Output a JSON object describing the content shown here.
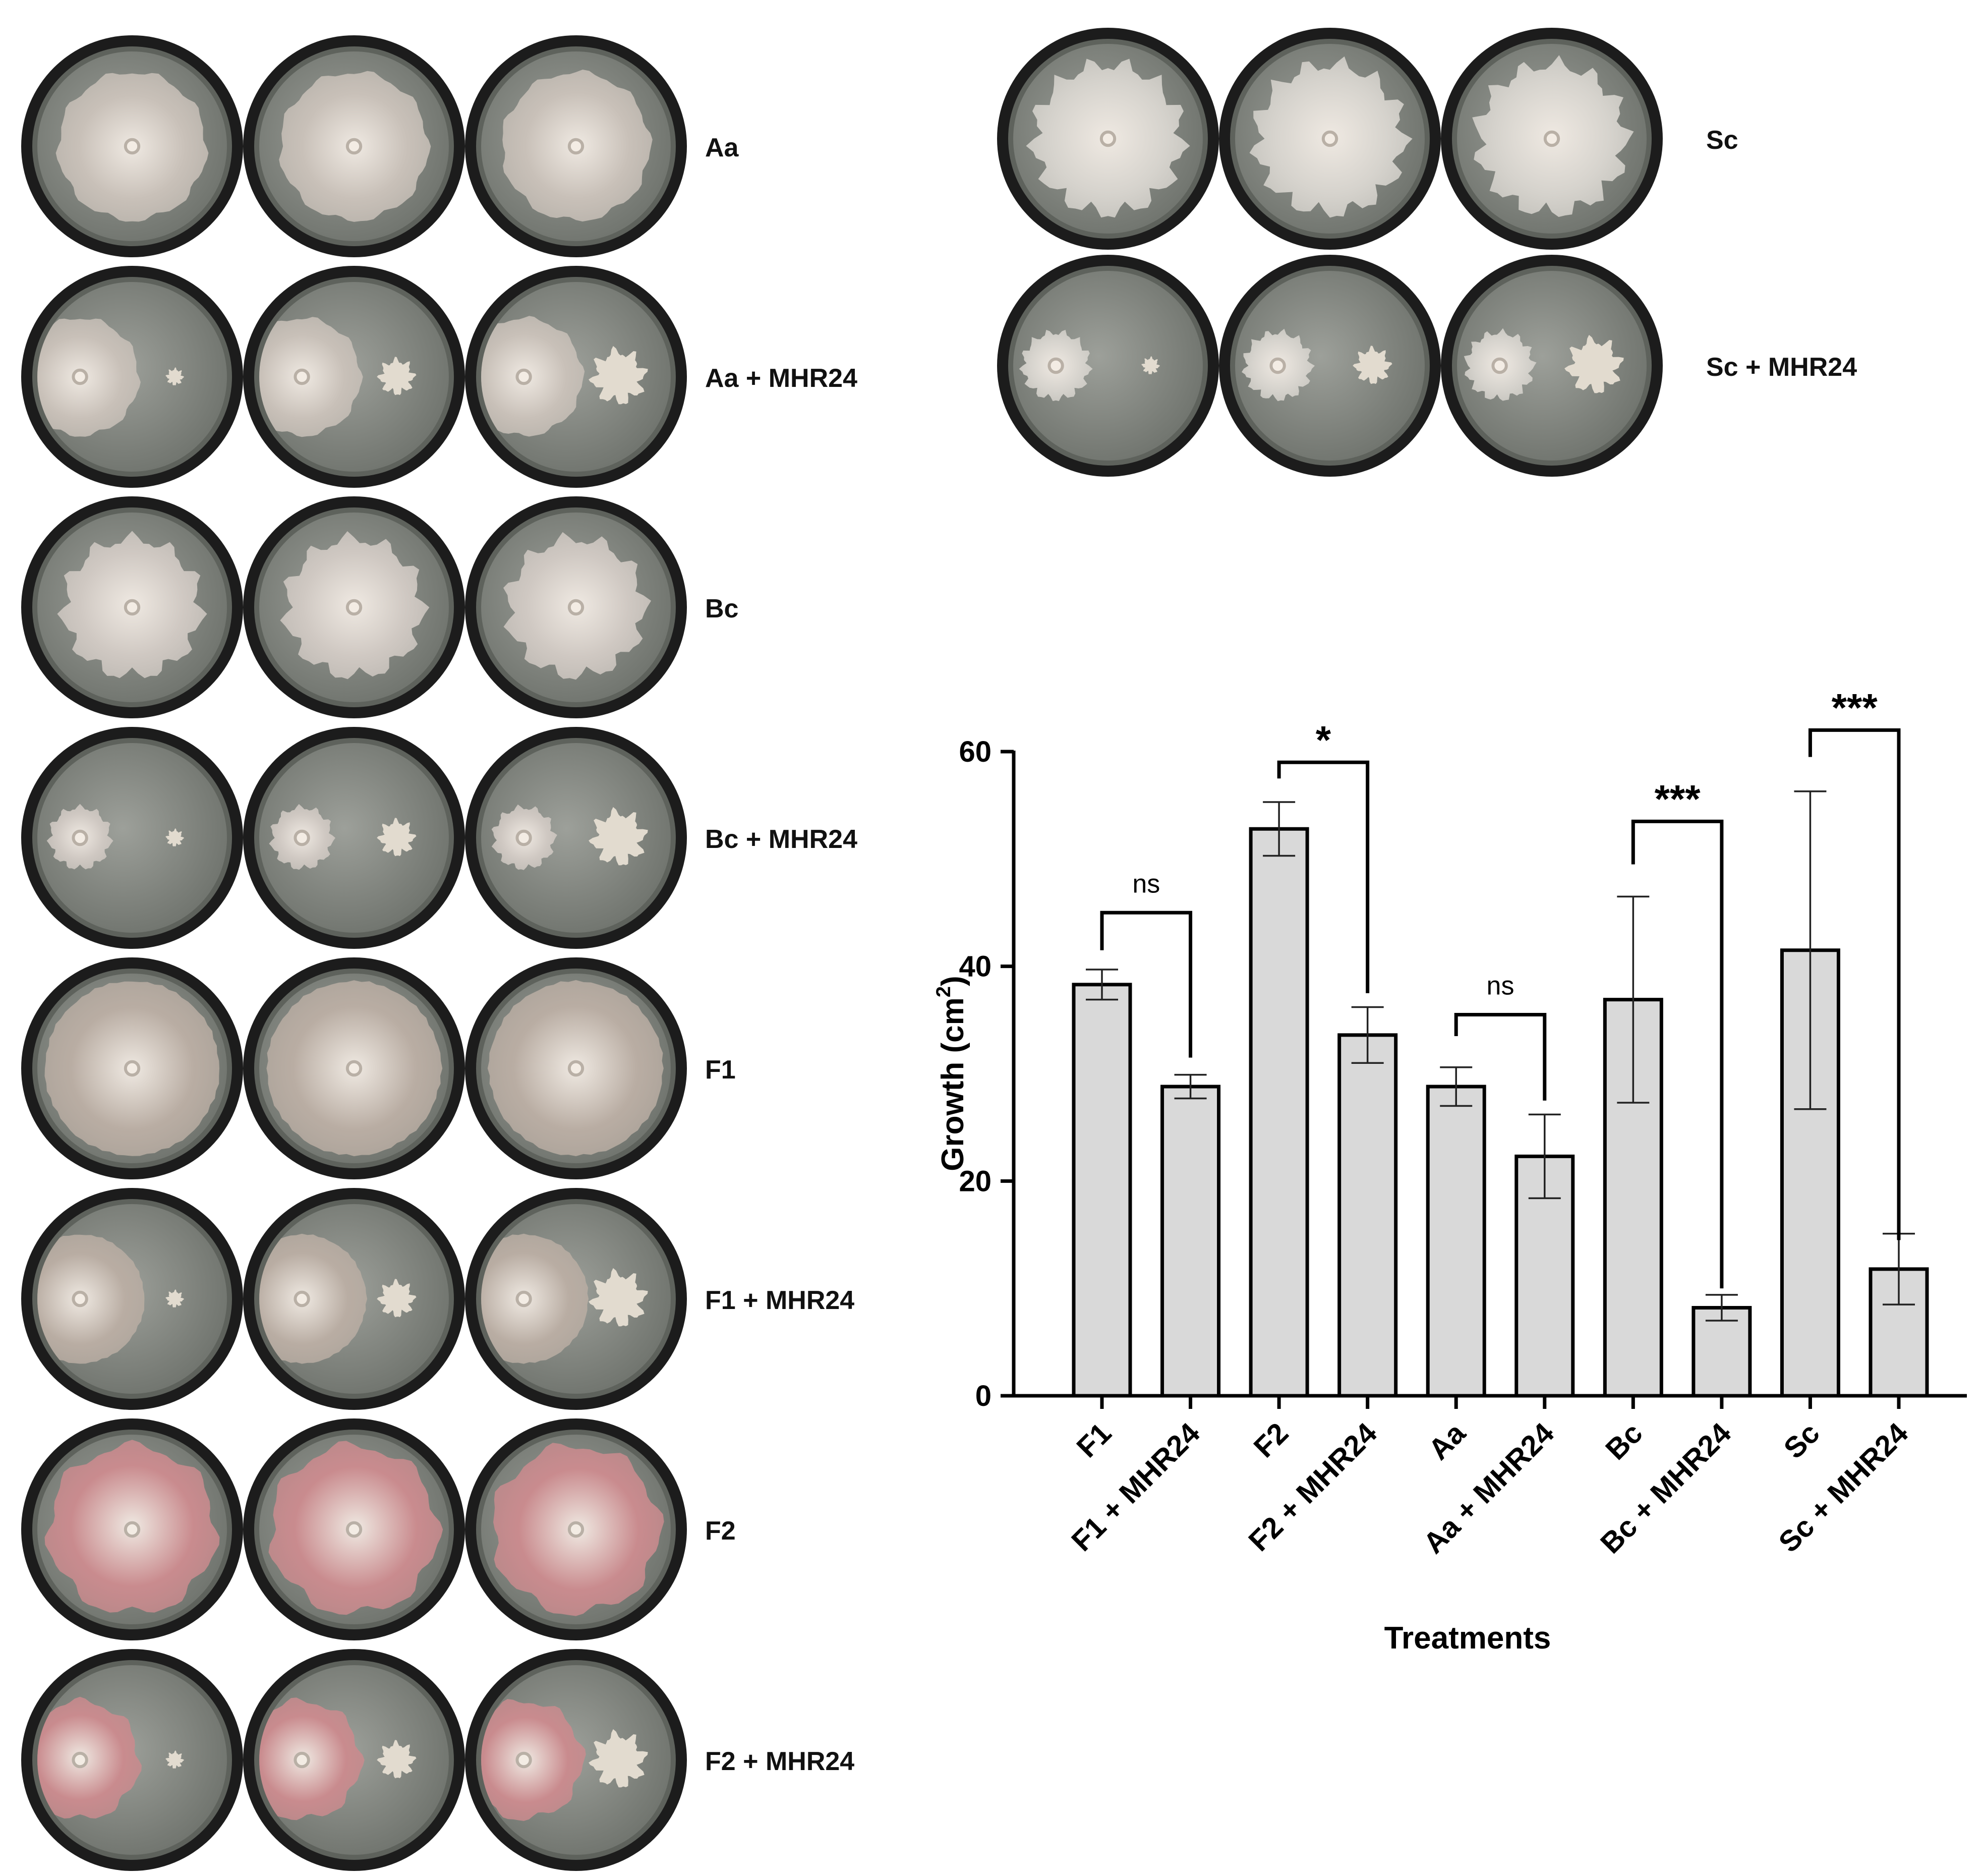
{
  "plates": {
    "left_rows": [
      {
        "label": "Aa",
        "kind": "Aa",
        "dual": false
      },
      {
        "label": "Aa + MHR24",
        "kind": "Aa",
        "dual": true
      },
      {
        "label": "Bc",
        "kind": "Bc",
        "dual": false
      },
      {
        "label": "Bc + MHR24",
        "kind": "Bc",
        "dual": true
      },
      {
        "label": "F1",
        "kind": "F1",
        "dual": false
      },
      {
        "label": "F1 + MHR24",
        "kind": "F1",
        "dual": true
      },
      {
        "label": "F2",
        "kind": "F2",
        "dual": false
      },
      {
        "label": "F2 + MHR24",
        "kind": "F2",
        "dual": true
      }
    ],
    "right_rows": [
      {
        "label": "Sc",
        "kind": "Sc",
        "dual": false
      },
      {
        "label": "Sc + MHR24",
        "kind": "Sc",
        "dual": true
      }
    ],
    "colors": {
      "dish_rim": "#1c1c1c",
      "agar": "#8f928c",
      "Aa": "#c8c0b8",
      "Bc": "#cfc8c2",
      "F1": "#b9ada3",
      "F2": "#c98b8e",
      "Sc": "#d6d3cd",
      "bacterium": "#e2dbcf"
    }
  },
  "chart_data": {
    "type": "bar",
    "categories": [
      "F1",
      "F1 + MHR24",
      "F2",
      "F2 + MHR24",
      "Aa",
      "Aa + MHR24",
      "Bc",
      "Bc + MHR24",
      "Sc",
      "Sc + MHR24"
    ],
    "values": [
      38.3,
      28.8,
      52.8,
      33.6,
      28.8,
      22.3,
      36.9,
      8.2,
      41.5,
      11.8
    ],
    "errors": [
      1.4,
      1.1,
      2.5,
      2.6,
      1.8,
      3.9,
      9.6,
      1.2,
      14.8,
      3.3
    ],
    "xlabel": "Treatments",
    "ylabel_text": "Growth (cm",
    "ylabel_sup": "2",
    "ylabel_close": ")",
    "ylim": [
      0,
      60
    ],
    "yticks": [
      0,
      20,
      40,
      60
    ],
    "grid": false,
    "bar_color": "#d9d9d9",
    "significance": [
      {
        "from": 0,
        "to": 1,
        "label": "ns",
        "bracket_y": 45,
        "left_drop_y": 41.5,
        "right_drop_y": 31.5
      },
      {
        "from": 2,
        "to": 3,
        "label": "*",
        "bracket_y": 59,
        "left_drop_y": 57.5,
        "right_drop_y": 37.5
      },
      {
        "from": 4,
        "to": 5,
        "label": "ns",
        "bracket_y": 35.5,
        "left_drop_y": 33.5,
        "right_drop_y": 27.5
      },
      {
        "from": 6,
        "to": 7,
        "label": "***",
        "bracket_y": 53.5,
        "left_drop_y": 49.5,
        "right_drop_y": 10
      },
      {
        "from": 8,
        "to": 9,
        "label": "***",
        "bracket_y": 62,
        "left_drop_y": 59.5,
        "right_drop_y": 14.5
      }
    ]
  }
}
